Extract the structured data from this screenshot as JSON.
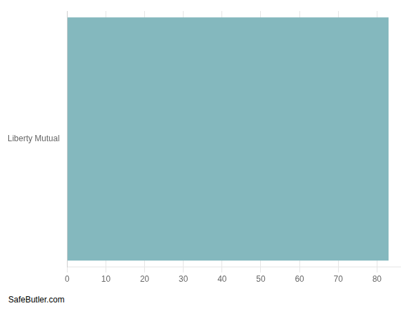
{
  "chart_data": {
    "type": "bar",
    "orientation": "horizontal",
    "categories": [
      "Liberty Mutual"
    ],
    "values": [
      83
    ],
    "color": "#84b8be",
    "xlim": [
      0,
      86
    ],
    "xticks": [
      0,
      10,
      20,
      30,
      40,
      50,
      60,
      70,
      80
    ],
    "grid": true,
    "annotation": "SafeButler.com"
  }
}
